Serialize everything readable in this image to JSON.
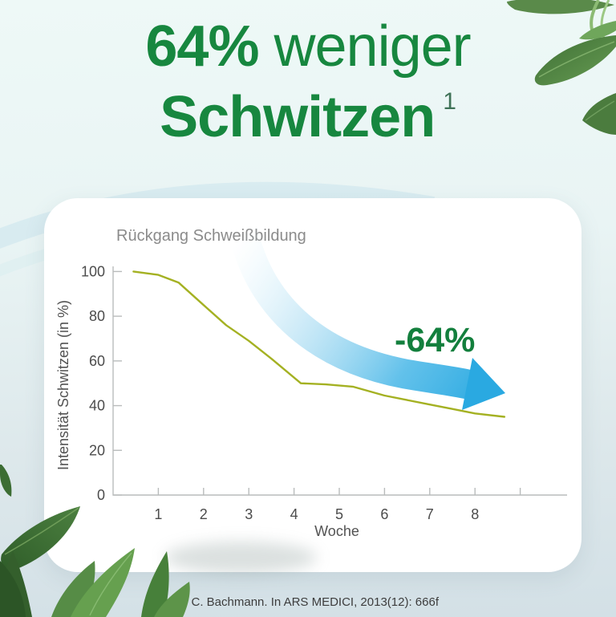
{
  "page": {
    "title_percent": "64%",
    "title_rest": "weniger",
    "title_line2": "Schwitzen",
    "title_footnote_mark": "1",
    "footnote": "1) C. Bachmann. In ARS MEDICI, 2013(12): 666f"
  },
  "colors": {
    "title_green": "#17873f",
    "annotation_green": "#137f3d",
    "line_olive": "#a4b122",
    "arrow_blue": "#2aa9e1",
    "bg_top": "#eef9f7",
    "bg_bottom": "#d3e0e6",
    "card_white": "#ffffff",
    "axis_gray": "#b9bcbc",
    "tick_text_gray": "#4c4c4c",
    "chart_title_gray": "#8b8b8b"
  },
  "chart_data": {
    "type": "line",
    "title": "Rückgang Schweißbildung",
    "xlabel": "Woche",
    "ylabel": "Intensität Schwitzen (in %)",
    "xlim": [
      0,
      9.3
    ],
    "ylim": [
      0,
      100
    ],
    "xticks": [
      1,
      2,
      3,
      4,
      5,
      6,
      7,
      8
    ],
    "xticks_minor": [
      9
    ],
    "yticks": [
      0,
      20,
      40,
      60,
      80,
      100
    ],
    "grid": false,
    "legend": false,
    "series": [
      {
        "name": "Intensität Schwitzen (in %)",
        "x": [
          0.45,
          1.0,
          1.45,
          2.0,
          2.5,
          3.0,
          3.5,
          4.15,
          4.7,
          5.3,
          6.0,
          6.5,
          7.0,
          7.5,
          8.0,
          8.65
        ],
        "y": [
          100,
          98.5,
          95,
          85,
          76,
          69,
          61,
          50,
          49.5,
          48.5,
          44.5,
          42.5,
          40.5,
          38.5,
          36.5,
          35
        ]
      }
    ],
    "annotation": {
      "label": "-64%"
    }
  }
}
